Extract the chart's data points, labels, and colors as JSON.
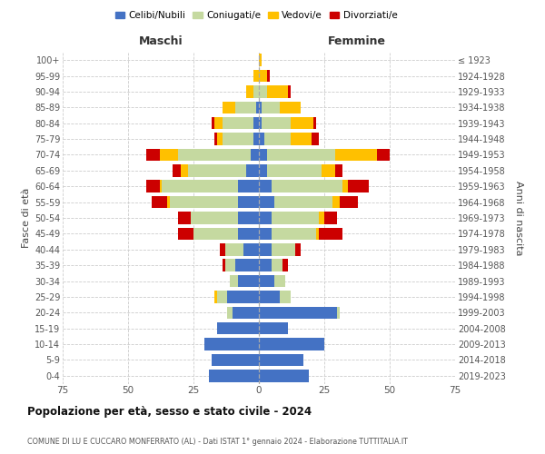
{
  "age_groups": [
    "0-4",
    "5-9",
    "10-14",
    "15-19",
    "20-24",
    "25-29",
    "30-34",
    "35-39",
    "40-44",
    "45-49",
    "50-54",
    "55-59",
    "60-64",
    "65-69",
    "70-74",
    "75-79",
    "80-84",
    "85-89",
    "90-94",
    "95-99",
    "100+"
  ],
  "birth_years": [
    "2019-2023",
    "2014-2018",
    "2009-2013",
    "2004-2008",
    "1999-2003",
    "1994-1998",
    "1989-1993",
    "1984-1988",
    "1979-1983",
    "1974-1978",
    "1969-1973",
    "1964-1968",
    "1959-1963",
    "1954-1958",
    "1949-1953",
    "1944-1948",
    "1939-1943",
    "1934-1938",
    "1929-1933",
    "1924-1928",
    "≤ 1923"
  ],
  "colors": {
    "celibi": "#4472c4",
    "coniugati": "#c5d9a0",
    "vedovi": "#ffc000",
    "divorziati": "#cc0000"
  },
  "maschi": {
    "celibi": [
      19,
      18,
      21,
      16,
      10,
      12,
      8,
      9,
      6,
      8,
      8,
      8,
      8,
      5,
      3,
      2,
      2,
      1,
      0,
      0,
      0
    ],
    "coniugati": [
      0,
      0,
      0,
      0,
      2,
      4,
      3,
      4,
      7,
      17,
      18,
      26,
      29,
      22,
      28,
      12,
      12,
      8,
      2,
      0,
      0
    ],
    "vedovi": [
      0,
      0,
      0,
      0,
      0,
      1,
      0,
      0,
      0,
      0,
      0,
      1,
      1,
      3,
      7,
      2,
      3,
      5,
      3,
      2,
      0
    ],
    "divorziati": [
      0,
      0,
      0,
      0,
      0,
      0,
      0,
      1,
      2,
      6,
      5,
      6,
      5,
      3,
      5,
      1,
      1,
      0,
      0,
      0,
      0
    ]
  },
  "femmine": {
    "celibi": [
      19,
      17,
      25,
      11,
      30,
      8,
      6,
      5,
      5,
      5,
      5,
      6,
      5,
      3,
      3,
      2,
      1,
      1,
      0,
      0,
      0
    ],
    "coniugati": [
      0,
      0,
      0,
      0,
      1,
      4,
      4,
      4,
      9,
      17,
      18,
      22,
      27,
      21,
      26,
      10,
      11,
      7,
      3,
      0,
      0
    ],
    "vedovi": [
      0,
      0,
      0,
      0,
      0,
      0,
      0,
      0,
      0,
      1,
      2,
      3,
      2,
      5,
      16,
      8,
      9,
      8,
      8,
      3,
      1
    ],
    "divorziati": [
      0,
      0,
      0,
      0,
      0,
      0,
      0,
      2,
      2,
      9,
      5,
      7,
      8,
      3,
      5,
      3,
      1,
      0,
      1,
      1,
      0
    ]
  },
  "title": "Popolazione per età, sesso e stato civile - 2024",
  "subtitle": "COMUNE DI LU E CUCCARO MONFERRATO (AL) - Dati ISTAT 1° gennaio 2024 - Elaborazione TUTTITALIA.IT",
  "maschi_label": "Maschi",
  "femmine_label": "Femmine",
  "ylabel_left": "Fasce di età",
  "ylabel_right": "Anni di nascita",
  "xlim": 75,
  "legend_labels": [
    "Celibi/Nubili",
    "Coniugati/e",
    "Vedovi/e",
    "Divorziati/e"
  ],
  "bg_color": "#ffffff",
  "grid_color": "#cccccc"
}
